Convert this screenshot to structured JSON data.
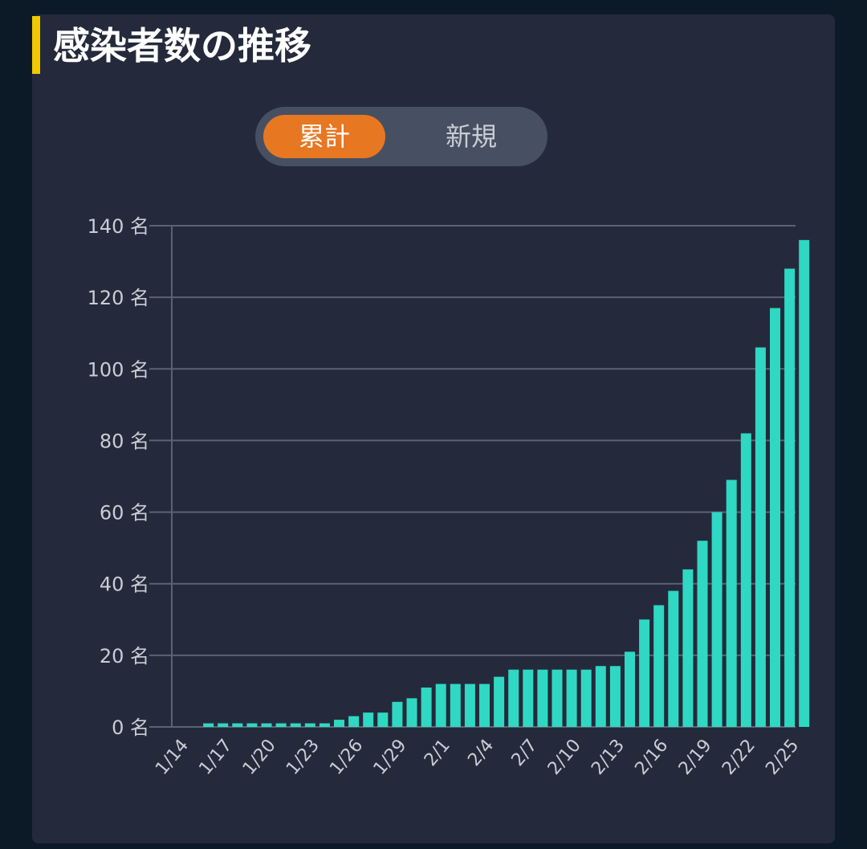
{
  "title": "感染者数の推移",
  "toggle": {
    "cumulative_label": "累計",
    "new_label": "新規",
    "active_color": "#e87722"
  },
  "colors": {
    "bar": "#2fd8c3",
    "grid": "#5c6270",
    "axis_text": "#c9cdd4",
    "title_accent": "#f2c800"
  },
  "chart_data": {
    "type": "bar",
    "unit": "名",
    "ylim": [
      0,
      140
    ],
    "yticks": [
      0,
      20,
      40,
      60,
      80,
      100,
      120,
      140
    ],
    "ytick_labels": [
      "0 名",
      "20 名",
      "40 名",
      "60 名",
      "80 名",
      "100 名",
      "120 名",
      "140 名"
    ],
    "grid": true,
    "x_label_every": 3,
    "categories": [
      "1/14",
      "1/15",
      "1/16",
      "1/17",
      "1/18",
      "1/19",
      "1/20",
      "1/21",
      "1/22",
      "1/23",
      "1/24",
      "1/25",
      "1/26",
      "1/27",
      "1/28",
      "1/29",
      "1/30",
      "1/31",
      "2/1",
      "2/2",
      "2/3",
      "2/4",
      "2/5",
      "2/6",
      "2/7",
      "2/8",
      "2/9",
      "2/10",
      "2/11",
      "2/12",
      "2/13",
      "2/14",
      "2/15",
      "2/16",
      "2/17",
      "2/18",
      "2/19",
      "2/20",
      "2/21",
      "2/22",
      "2/23",
      "2/24",
      "2/25"
    ],
    "values": [
      0,
      1,
      1,
      1,
      1,
      1,
      1,
      1,
      1,
      1,
      2,
      3,
      4,
      4,
      7,
      8,
      11,
      12,
      12,
      12,
      12,
      14,
      16,
      16,
      16,
      16,
      16,
      16,
      17,
      17,
      21,
      30,
      34,
      38,
      44,
      52,
      60,
      69,
      82,
      106,
      117,
      128,
      136
    ]
  }
}
